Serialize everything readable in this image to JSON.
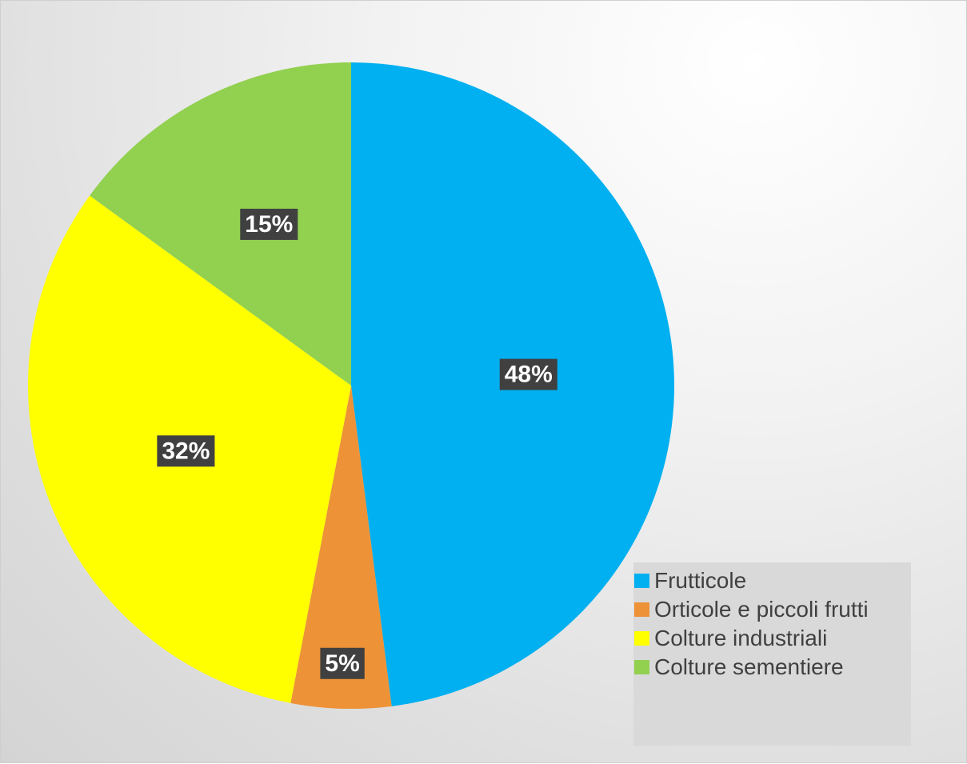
{
  "chart_data": {
    "type": "pie",
    "title": "",
    "series": [
      {
        "name": "",
        "values": [
          48,
          5,
          32,
          15
        ]
      }
    ],
    "categories": [
      "Frutticole",
      "Orticole e piccoli frutti",
      "Colture industriali",
      "Colture sementiere"
    ],
    "slices": [
      {
        "label": "Frutticole",
        "value": 48,
        "data_label": "48%",
        "color": "#00B0F0"
      },
      {
        "label": "Orticole e piccoli frutti",
        "value": 5,
        "data_label": "5%",
        "color": "#ED9237"
      },
      {
        "label": "Colture industriali",
        "value": 32,
        "data_label": "32%",
        "color": "#FFFF00"
      },
      {
        "label": "Colture sementiere",
        "value": 15,
        "data_label": "15%",
        "color": "#92D050"
      }
    ],
    "start_angle": "12 o'clock",
    "direction": "clockwise",
    "legend_position": "bottom-right",
    "data_label_style": "white bold text on dark gray box"
  }
}
